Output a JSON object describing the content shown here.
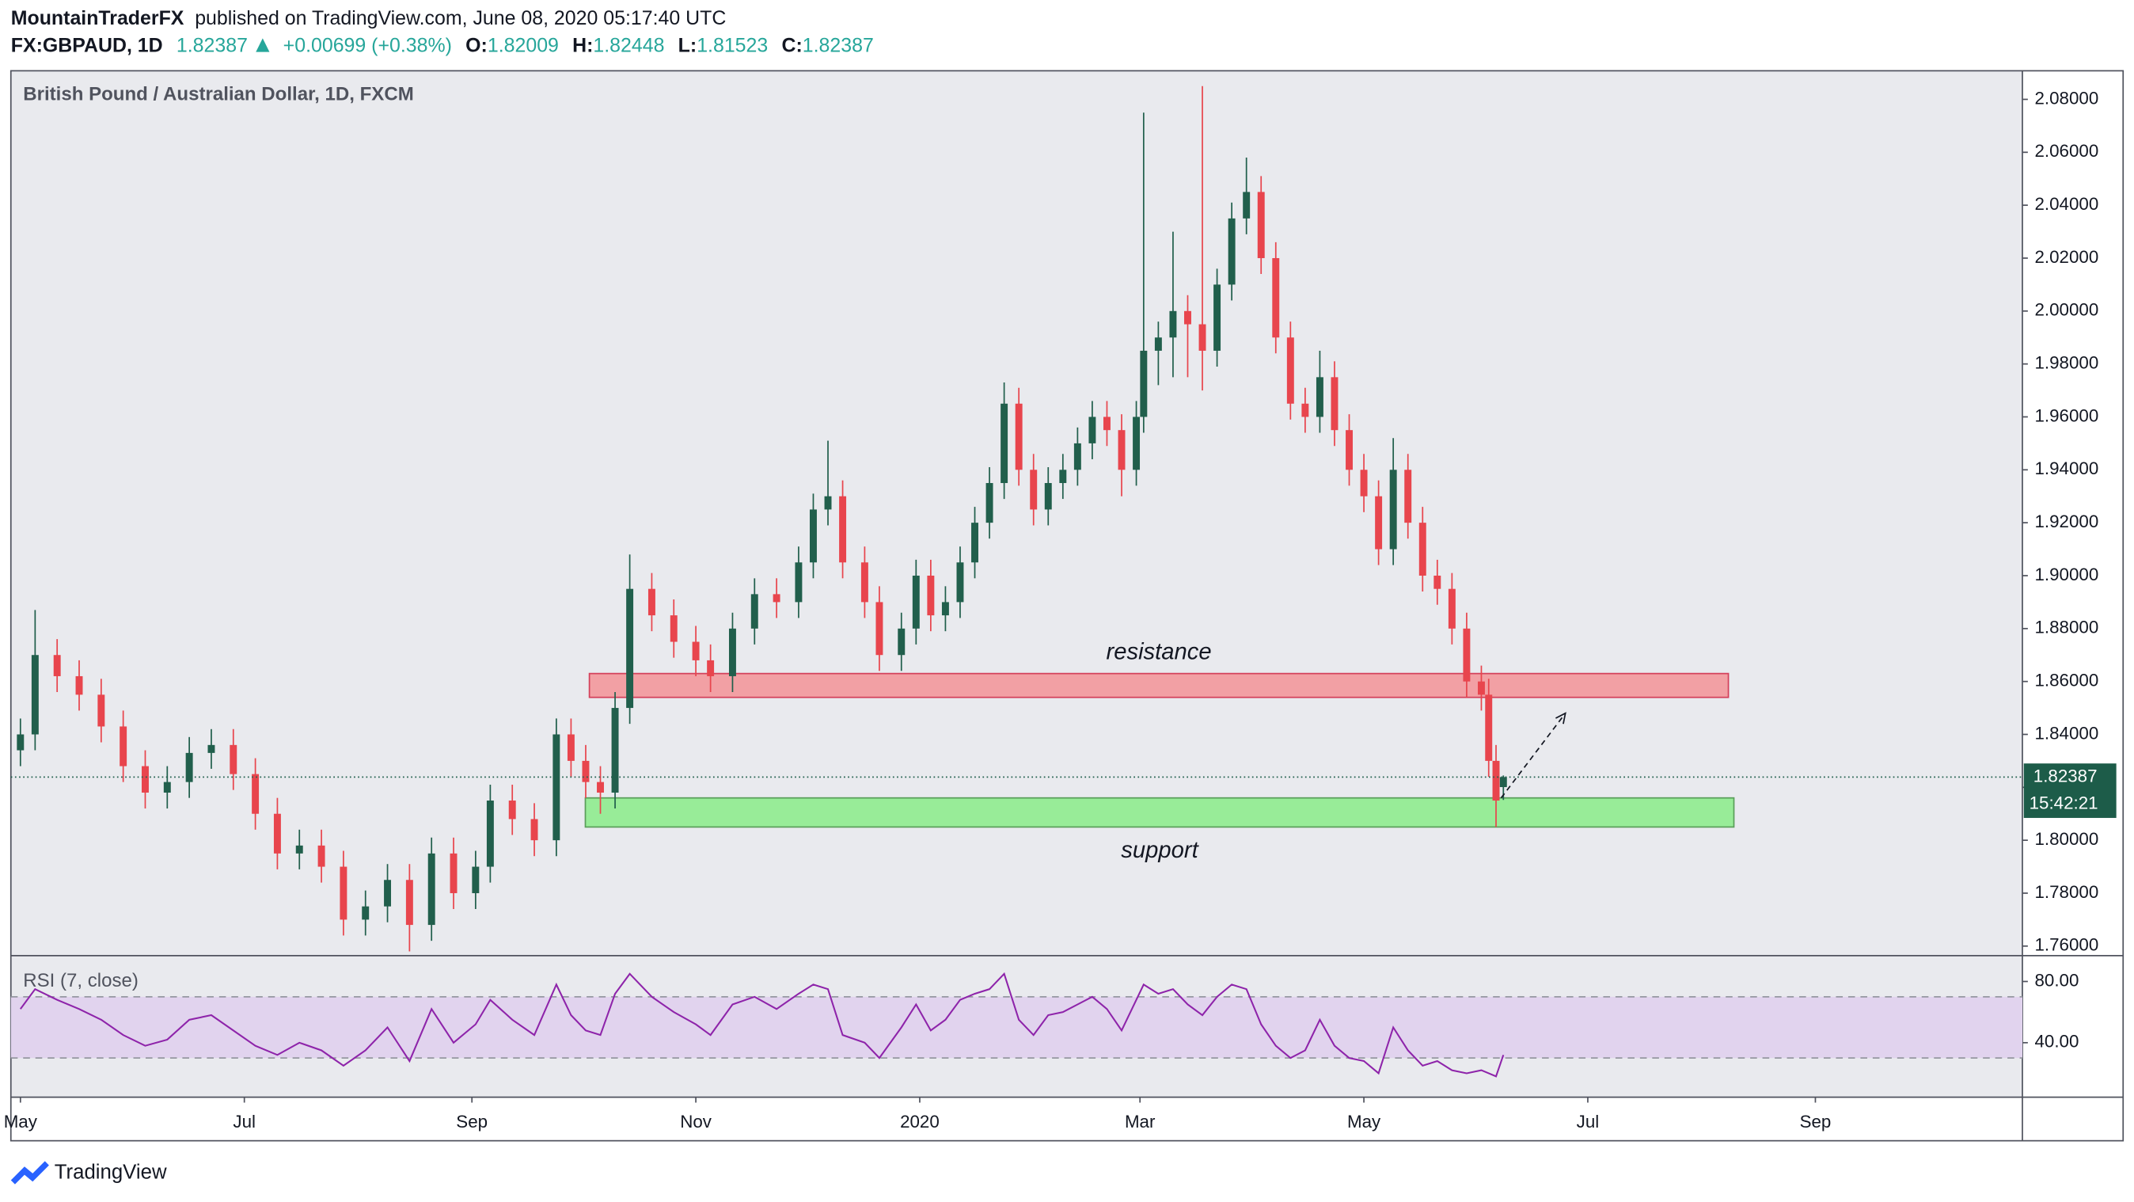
{
  "header": {
    "author": "MountainTraderFX",
    "published": "published on TradingView.com, June 08, 2020 05:17:40 UTC",
    "symbol": "FX:GBPAUD, 1D",
    "quote": "1.82387",
    "change": "+0.00699 (+0.38%)",
    "ohlc": [
      {
        "label": "O:",
        "value": "1.82009"
      },
      {
        "label": "H:",
        "value": "1.82448"
      },
      {
        "label": "L:",
        "value": "1.81523"
      },
      {
        "label": "C:",
        "value": "1.82387"
      }
    ],
    "countdown": "15:42:21"
  },
  "footer": "TradingView",
  "chart_data": [
    {
      "type": "candlestick",
      "title": "British Pound / Australian Dollar, 1D, FXCM",
      "up_color": "#215f4c",
      "down_color": "#e8454d",
      "x": [
        0,
        4,
        10,
        16,
        22,
        28,
        34,
        40,
        46,
        52,
        58,
        64,
        70,
        76,
        82,
        88,
        94,
        100,
        106,
        112,
        118,
        124,
        128,
        134,
        140,
        146,
        150,
        154,
        158,
        162,
        166,
        172,
        178,
        184,
        188,
        194,
        200,
        206,
        212,
        216,
        220,
        224,
        230,
        234,
        240,
        244,
        248,
        252,
        256,
        260,
        264,
        268,
        272,
        276,
        280,
        284,
        288,
        292,
        296,
        300,
        304,
        306,
        310,
        314,
        318,
        322,
        326,
        330,
        334,
        338,
        342,
        346,
        350,
        354,
        358,
        362,
        366,
        370,
        374,
        378,
        382,
        386,
        390,
        394,
        398,
        400,
        402,
        404
      ],
      "open": [
        1.834,
        1.84,
        1.87,
        1.862,
        1.855,
        1.843,
        1.828,
        1.818,
        1.822,
        1.833,
        1.836,
        1.825,
        1.81,
        1.795,
        1.798,
        1.79,
        1.77,
        1.775,
        1.785,
        1.768,
        1.795,
        1.78,
        1.79,
        1.815,
        1.808,
        1.8,
        1.84,
        1.83,
        1.822,
        1.818,
        1.85,
        1.895,
        1.885,
        1.875,
        1.868,
        1.862,
        1.88,
        1.893,
        1.89,
        1.905,
        1.925,
        1.93,
        1.905,
        1.89,
        1.87,
        1.88,
        1.9,
        1.885,
        1.89,
        1.905,
        1.92,
        1.935,
        1.965,
        1.94,
        1.925,
        1.935,
        1.94,
        1.95,
        1.96,
        1.955,
        1.94,
        1.96,
        1.985,
        1.99,
        2.0,
        1.995,
        1.985,
        2.01,
        2.035,
        2.045,
        2.02,
        1.99,
        1.965,
        1.96,
        1.975,
        1.955,
        1.94,
        1.93,
        1.91,
        1.94,
        1.92,
        1.9,
        1.895,
        1.88,
        1.86,
        1.855,
        1.83,
        1.82009
      ],
      "high": [
        1.846,
        1.887,
        1.876,
        1.868,
        1.861,
        1.849,
        1.834,
        1.828,
        1.839,
        1.842,
        1.842,
        1.831,
        1.816,
        1.804,
        1.804,
        1.796,
        1.781,
        1.791,
        1.791,
        1.801,
        1.801,
        1.796,
        1.821,
        1.821,
        1.814,
        1.846,
        1.846,
        1.836,
        1.828,
        1.856,
        1.908,
        1.901,
        1.891,
        1.881,
        1.874,
        1.886,
        1.899,
        1.899,
        1.911,
        1.931,
        1.951,
        1.936,
        1.911,
        1.896,
        1.886,
        1.906,
        1.906,
        1.896,
        1.911,
        1.926,
        1.941,
        1.973,
        1.971,
        1.946,
        1.941,
        1.946,
        1.956,
        1.966,
        1.966,
        1.961,
        1.966,
        2.075,
        1.996,
        2.03,
        2.006,
        2.085,
        2.016,
        2.041,
        2.058,
        2.051,
        2.026,
        1.996,
        1.971,
        1.985,
        1.981,
        1.961,
        1.946,
        1.936,
        1.952,
        1.946,
        1.926,
        1.906,
        1.901,
        1.886,
        1.866,
        1.861,
        1.836,
        1.82448
      ],
      "low": [
        1.828,
        1.834,
        1.856,
        1.849,
        1.837,
        1.822,
        1.812,
        1.812,
        1.816,
        1.827,
        1.819,
        1.804,
        1.789,
        1.789,
        1.784,
        1.764,
        1.764,
        1.769,
        1.758,
        1.762,
        1.774,
        1.774,
        1.784,
        1.802,
        1.794,
        1.794,
        1.824,
        1.816,
        1.81,
        1.812,
        1.844,
        1.879,
        1.869,
        1.862,
        1.856,
        1.856,
        1.874,
        1.884,
        1.884,
        1.899,
        1.919,
        1.899,
        1.884,
        1.864,
        1.864,
        1.874,
        1.879,
        1.879,
        1.884,
        1.899,
        1.914,
        1.929,
        1.934,
        1.919,
        1.919,
        1.929,
        1.934,
        1.944,
        1.949,
        1.93,
        1.934,
        1.954,
        1.972,
        1.975,
        1.975,
        1.97,
        1.979,
        2.004,
        2.029,
        2.014,
        1.984,
        1.959,
        1.954,
        1.954,
        1.949,
        1.934,
        1.924,
        1.904,
        1.904,
        1.914,
        1.894,
        1.889,
        1.874,
        1.854,
        1.849,
        1.824,
        1.805,
        1.81523
      ],
      "close": [
        1.84,
        1.87,
        1.862,
        1.855,
        1.843,
        1.828,
        1.818,
        1.822,
        1.833,
        1.836,
        1.825,
        1.81,
        1.795,
        1.798,
        1.79,
        1.77,
        1.775,
        1.785,
        1.768,
        1.795,
        1.78,
        1.79,
        1.815,
        1.808,
        1.8,
        1.84,
        1.83,
        1.822,
        1.818,
        1.85,
        1.895,
        1.885,
        1.875,
        1.868,
        1.862,
        1.88,
        1.893,
        1.89,
        1.905,
        1.925,
        1.93,
        1.905,
        1.89,
        1.87,
        1.88,
        1.9,
        1.885,
        1.89,
        1.905,
        1.92,
        1.935,
        1.965,
        1.94,
        1.925,
        1.935,
        1.94,
        1.95,
        1.96,
        1.955,
        1.94,
        1.96,
        1.985,
        1.99,
        2.0,
        1.995,
        1.985,
        2.01,
        2.035,
        2.045,
        2.02,
        1.99,
        1.965,
        1.96,
        1.975,
        1.955,
        1.94,
        1.93,
        1.91,
        1.94,
        1.92,
        1.9,
        1.895,
        1.88,
        1.86,
        1.855,
        1.83,
        1.815,
        1.82387
      ],
      "xlim": [
        -2.6,
        545.4
      ],
      "xticks": [
        {
          "value": 0,
          "label": "May"
        },
        {
          "value": 61,
          "label": "Jul"
        },
        {
          "value": 123,
          "label": "Sep"
        },
        {
          "value": 184,
          "label": "Nov"
        },
        {
          "value": 245,
          "label": "2020"
        },
        {
          "value": 305,
          "label": "Mar"
        },
        {
          "value": 366,
          "label": "May"
        },
        {
          "value": 427,
          "label": "Jul"
        },
        {
          "value": 489,
          "label": "Sep"
        }
      ],
      "ylim": [
        1.7564,
        2.0908
      ],
      "yticks": [
        {
          "value": 1.76,
          "label": "1.76000"
        },
        {
          "value": 1.78,
          "label": "1.78000"
        },
        {
          "value": 1.8,
          "label": "1.80000"
        },
        {
          "value": 1.82,
          "label": "1.82000"
        },
        {
          "value": 1.84,
          "label": "1.84000"
        },
        {
          "value": 1.86,
          "label": "1.86000"
        },
        {
          "value": 1.88,
          "label": "1.88000"
        },
        {
          "value": 1.9,
          "label": "1.90000"
        },
        {
          "value": 1.92,
          "label": "1.92000"
        },
        {
          "value": 1.94,
          "label": "1.94000"
        },
        {
          "value": 1.96,
          "label": "1.96000"
        },
        {
          "value": 1.98,
          "label": "1.98000"
        },
        {
          "value": 2.0,
          "label": "2.00000"
        },
        {
          "value": 2.02,
          "label": "2.02000"
        },
        {
          "value": 2.04,
          "label": "2.04000"
        },
        {
          "value": 2.06,
          "label": "2.06000"
        },
        {
          "value": 2.08,
          "label": "2.08000"
        }
      ],
      "grid": false,
      "zones": [
        {
          "label": "resistance",
          "x": [
            155,
            465.3
          ],
          "y": [
            1.854,
            1.863
          ],
          "color": "#f2a0a4",
          "border": "#d4405a",
          "label_side": "above"
        },
        {
          "label": "support",
          "x": [
            153.9,
            466.8
          ],
          "y": [
            1.805,
            1.816
          ],
          "color": "#98ec98",
          "border": "#5a9e5a",
          "label_side": "below"
        }
      ],
      "arrow": {
        "x": [
          403.4,
          420.9
        ],
        "y": [
          1.816,
          1.848
        ]
      }
    },
    {
      "type": "line",
      "title": "RSI (7, close)",
      "color": "#8e24aa",
      "band": [
        30,
        70
      ],
      "band_color": "#e1d3ee",
      "x": [
        0,
        4,
        10,
        16,
        22,
        28,
        34,
        40,
        46,
        52,
        58,
        64,
        70,
        76,
        82,
        88,
        94,
        100,
        106,
        112,
        118,
        124,
        128,
        134,
        140,
        146,
        150,
        154,
        158,
        162,
        166,
        172,
        178,
        184,
        188,
        194,
        200,
        206,
        212,
        216,
        220,
        224,
        230,
        234,
        240,
        244,
        248,
        252,
        256,
        260,
        264,
        268,
        272,
        276,
        280,
        284,
        288,
        292,
        296,
        300,
        304,
        306,
        310,
        314,
        318,
        322,
        326,
        330,
        334,
        338,
        342,
        346,
        350,
        354,
        358,
        362,
        366,
        370,
        374,
        378,
        382,
        386,
        390,
        394,
        398,
        400,
        402,
        404
      ],
      "values": [
        62,
        75,
        68,
        62,
        55,
        45,
        38,
        42,
        55,
        58,
        48,
        38,
        32,
        40,
        35,
        25,
        35,
        50,
        28,
        62,
        40,
        52,
        68,
        55,
        45,
        78,
        58,
        48,
        45,
        72,
        85,
        70,
        60,
        52,
        45,
        65,
        70,
        62,
        72,
        78,
        75,
        45,
        40,
        30,
        50,
        65,
        48,
        55,
        68,
        72,
        75,
        85,
        55,
        45,
        58,
        60,
        65,
        70,
        62,
        48,
        68,
        78,
        72,
        75,
        65,
        58,
        70,
        78,
        75,
        52,
        38,
        30,
        35,
        55,
        38,
        30,
        28,
        20,
        50,
        35,
        25,
        28,
        22,
        20,
        22,
        20,
        18,
        32
      ],
      "xlim": [
        -2.6,
        545.4
      ],
      "ylim": [
        4.4,
        96.9
      ],
      "yticks": [
        {
          "value": 80,
          "label": "80.00"
        },
        {
          "value": 40,
          "label": "40.00"
        }
      ]
    }
  ]
}
